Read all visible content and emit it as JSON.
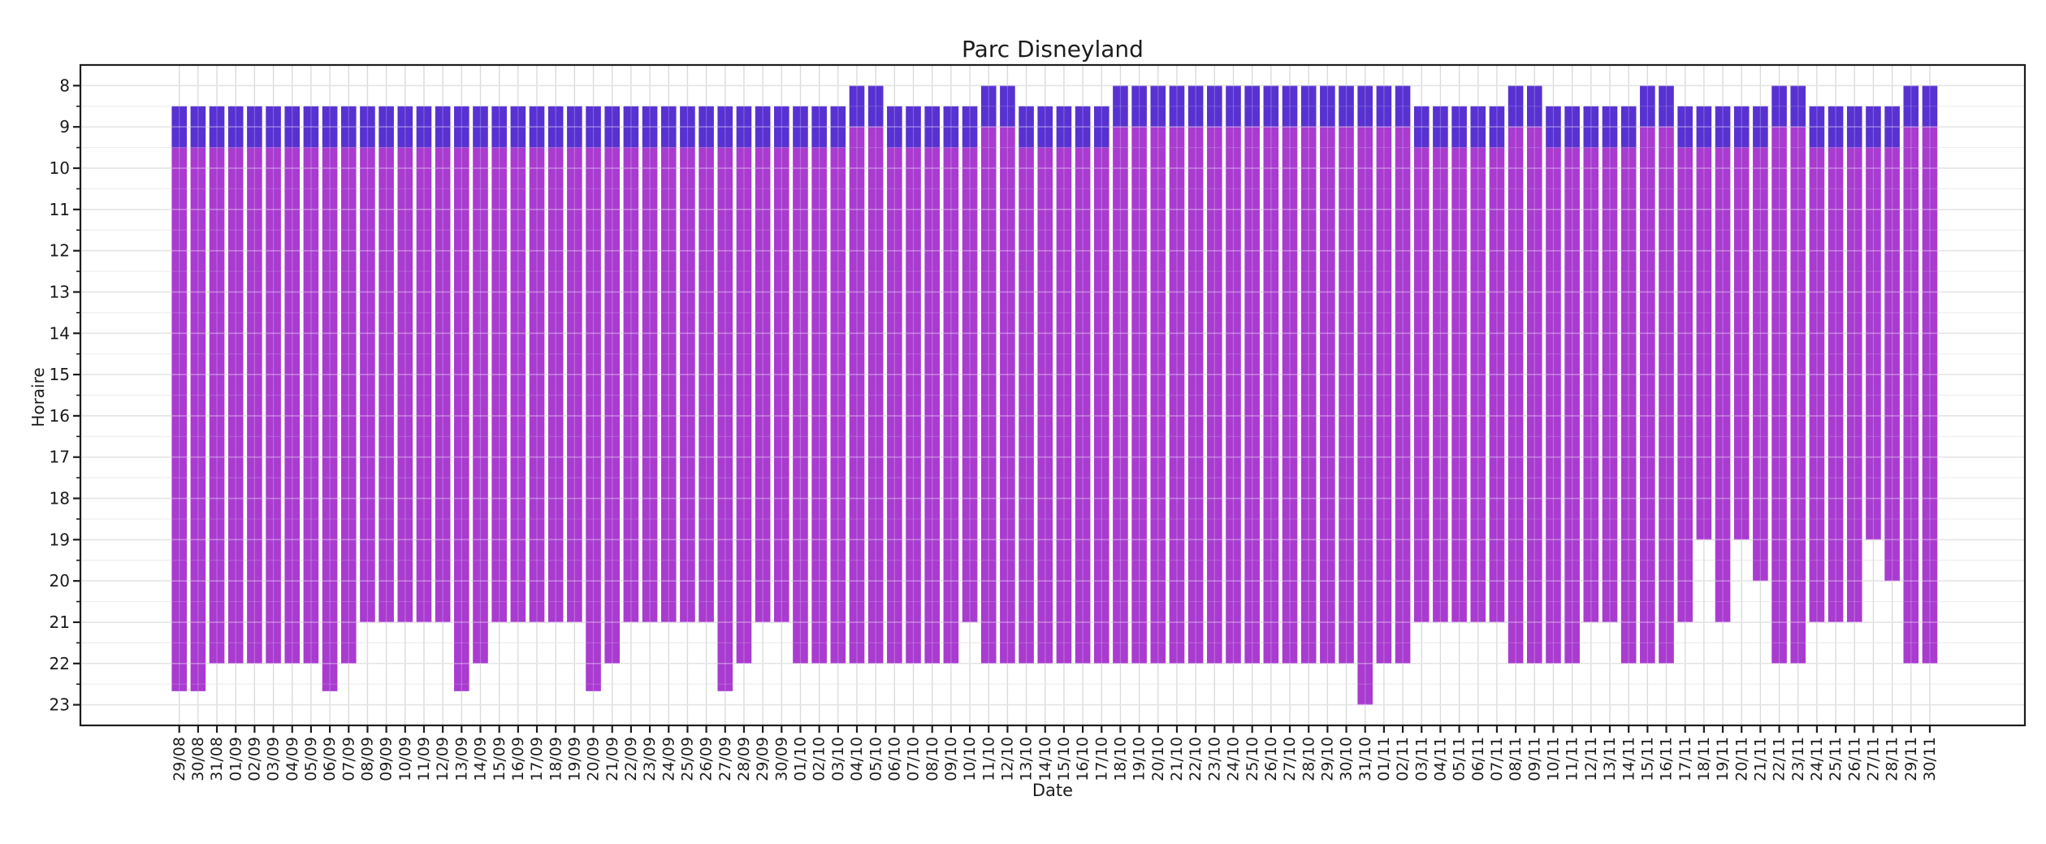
{
  "chart_data": {
    "type": "bar",
    "title": "Parc Disneyland",
    "xlabel": "Date",
    "ylabel": "Horaire",
    "y_ticks": [
      8,
      9,
      10,
      11,
      12,
      13,
      14,
      15,
      16,
      17,
      18,
      19,
      20,
      21,
      22,
      23
    ],
    "ylim": [
      23.5,
      7.5
    ],
    "y_axis_inverted": true,
    "grid": "on",
    "categories": [
      "29/08",
      "30/08",
      "31/08",
      "01/09",
      "02/09",
      "03/09",
      "04/09",
      "05/09",
      "06/09",
      "07/09",
      "08/09",
      "09/09",
      "10/09",
      "11/09",
      "12/09",
      "13/09",
      "14/09",
      "15/09",
      "16/09",
      "17/09",
      "18/09",
      "19/09",
      "20/09",
      "21/09",
      "22/09",
      "23/09",
      "24/09",
      "25/09",
      "26/09",
      "27/09",
      "28/09",
      "29/09",
      "30/09",
      "01/10",
      "02/10",
      "03/10",
      "04/10",
      "05/10",
      "06/10",
      "07/10",
      "08/10",
      "09/10",
      "10/10",
      "11/10",
      "12/10",
      "13/10",
      "14/10",
      "15/10",
      "16/10",
      "17/10",
      "18/10",
      "19/10",
      "20/10",
      "21/10",
      "22/10",
      "23/10",
      "24/10",
      "25/10",
      "26/10",
      "27/10",
      "28/10",
      "29/10",
      "30/10",
      "31/10",
      "01/11",
      "02/11",
      "03/11",
      "04/11",
      "05/11",
      "06/11",
      "07/11",
      "08/11",
      "09/11",
      "10/11",
      "11/11",
      "12/11",
      "13/11",
      "14/11",
      "15/11",
      "16/11",
      "17/11",
      "18/11",
      "19/11",
      "20/11",
      "21/11",
      "22/11",
      "23/11",
      "24/11",
      "25/11",
      "26/11",
      "27/11",
      "28/11",
      "29/11",
      "30/11"
    ],
    "series": [
      {
        "id": "early-morning-band",
        "color": "#5a2ed8",
        "role": "segment from start to mid"
      },
      {
        "id": "day-band",
        "color": "#ae3cd4",
        "role": "segment from mid to end"
      }
    ],
    "bars": [
      {
        "date": "29/08",
        "start": 8.5,
        "mid": 9.5,
        "end": 22.67
      },
      {
        "date": "30/08",
        "start": 8.5,
        "mid": 9.5,
        "end": 22.67
      },
      {
        "date": "31/08",
        "start": 8.5,
        "mid": 9.5,
        "end": 22
      },
      {
        "date": "01/09",
        "start": 8.5,
        "mid": 9.5,
        "end": 22
      },
      {
        "date": "02/09",
        "start": 8.5,
        "mid": 9.5,
        "end": 22
      },
      {
        "date": "03/09",
        "start": 8.5,
        "mid": 9.5,
        "end": 22
      },
      {
        "date": "04/09",
        "start": 8.5,
        "mid": 9.5,
        "end": 22
      },
      {
        "date": "05/09",
        "start": 8.5,
        "mid": 9.5,
        "end": 22
      },
      {
        "date": "06/09",
        "start": 8.5,
        "mid": 9.5,
        "end": 22.67
      },
      {
        "date": "07/09",
        "start": 8.5,
        "mid": 9.5,
        "end": 22
      },
      {
        "date": "08/09",
        "start": 8.5,
        "mid": 9.5,
        "end": 21
      },
      {
        "date": "09/09",
        "start": 8.5,
        "mid": 9.5,
        "end": 21
      },
      {
        "date": "10/09",
        "start": 8.5,
        "mid": 9.5,
        "end": 21
      },
      {
        "date": "11/09",
        "start": 8.5,
        "mid": 9.5,
        "end": 21
      },
      {
        "date": "12/09",
        "start": 8.5,
        "mid": 9.5,
        "end": 21
      },
      {
        "date": "13/09",
        "start": 8.5,
        "mid": 9.5,
        "end": 22.67
      },
      {
        "date": "14/09",
        "start": 8.5,
        "mid": 9.5,
        "end": 22
      },
      {
        "date": "15/09",
        "start": 8.5,
        "mid": 9.5,
        "end": 21
      },
      {
        "date": "16/09",
        "start": 8.5,
        "mid": 9.5,
        "end": 21
      },
      {
        "date": "17/09",
        "start": 8.5,
        "mid": 9.5,
        "end": 21
      },
      {
        "date": "18/09",
        "start": 8.5,
        "mid": 9.5,
        "end": 21
      },
      {
        "date": "19/09",
        "start": 8.5,
        "mid": 9.5,
        "end": 21
      },
      {
        "date": "20/09",
        "start": 8.5,
        "mid": 9.5,
        "end": 22.67
      },
      {
        "date": "21/09",
        "start": 8.5,
        "mid": 9.5,
        "end": 22
      },
      {
        "date": "22/09",
        "start": 8.5,
        "mid": 9.5,
        "end": 21
      },
      {
        "date": "23/09",
        "start": 8.5,
        "mid": 9.5,
        "end": 21
      },
      {
        "date": "24/09",
        "start": 8.5,
        "mid": 9.5,
        "end": 21
      },
      {
        "date": "25/09",
        "start": 8.5,
        "mid": 9.5,
        "end": 21
      },
      {
        "date": "26/09",
        "start": 8.5,
        "mid": 9.5,
        "end": 21
      },
      {
        "date": "27/09",
        "start": 8.5,
        "mid": 9.5,
        "end": 22.67
      },
      {
        "date": "28/09",
        "start": 8.5,
        "mid": 9.5,
        "end": 22
      },
      {
        "date": "29/09",
        "start": 8.5,
        "mid": 9.5,
        "end": 21
      },
      {
        "date": "30/09",
        "start": 8.5,
        "mid": 9.5,
        "end": 21
      },
      {
        "date": "01/10",
        "start": 8.5,
        "mid": 9.5,
        "end": 22
      },
      {
        "date": "02/10",
        "start": 8.5,
        "mid": 9.5,
        "end": 22
      },
      {
        "date": "03/10",
        "start": 8.5,
        "mid": 9.5,
        "end": 22
      },
      {
        "date": "04/10",
        "start": 8.0,
        "mid": 9.0,
        "end": 22
      },
      {
        "date": "05/10",
        "start": 8.0,
        "mid": 9.0,
        "end": 22
      },
      {
        "date": "06/10",
        "start": 8.5,
        "mid": 9.5,
        "end": 22
      },
      {
        "date": "07/10",
        "start": 8.5,
        "mid": 9.5,
        "end": 22
      },
      {
        "date": "08/10",
        "start": 8.5,
        "mid": 9.5,
        "end": 22
      },
      {
        "date": "09/10",
        "start": 8.5,
        "mid": 9.5,
        "end": 22
      },
      {
        "date": "10/10",
        "start": 8.5,
        "mid": 9.5,
        "end": 21
      },
      {
        "date": "11/10",
        "start": 8.0,
        "mid": 9.0,
        "end": 22
      },
      {
        "date": "12/10",
        "start": 8.0,
        "mid": 9.0,
        "end": 22
      },
      {
        "date": "13/10",
        "start": 8.5,
        "mid": 9.5,
        "end": 22
      },
      {
        "date": "14/10",
        "start": 8.5,
        "mid": 9.5,
        "end": 22
      },
      {
        "date": "15/10",
        "start": 8.5,
        "mid": 9.5,
        "end": 22
      },
      {
        "date": "16/10",
        "start": 8.5,
        "mid": 9.5,
        "end": 22
      },
      {
        "date": "17/10",
        "start": 8.5,
        "mid": 9.5,
        "end": 22
      },
      {
        "date": "18/10",
        "start": 8.0,
        "mid": 9.0,
        "end": 22
      },
      {
        "date": "19/10",
        "start": 8.0,
        "mid": 9.0,
        "end": 22
      },
      {
        "date": "20/10",
        "start": 8.0,
        "mid": 9.0,
        "end": 22
      },
      {
        "date": "21/10",
        "start": 8.0,
        "mid": 9.0,
        "end": 22
      },
      {
        "date": "22/10",
        "start": 8.0,
        "mid": 9.0,
        "end": 22
      },
      {
        "date": "23/10",
        "start": 8.0,
        "mid": 9.0,
        "end": 22
      },
      {
        "date": "24/10",
        "start": 8.0,
        "mid": 9.0,
        "end": 22
      },
      {
        "date": "25/10",
        "start": 8.0,
        "mid": 9.0,
        "end": 22
      },
      {
        "date": "26/10",
        "start": 8.0,
        "mid": 9.0,
        "end": 22
      },
      {
        "date": "27/10",
        "start": 8.0,
        "mid": 9.0,
        "end": 22
      },
      {
        "date": "28/10",
        "start": 8.0,
        "mid": 9.0,
        "end": 22
      },
      {
        "date": "29/10",
        "start": 8.0,
        "mid": 9.0,
        "end": 22
      },
      {
        "date": "30/10",
        "start": 8.0,
        "mid": 9.0,
        "end": 22
      },
      {
        "date": "31/10",
        "start": 8.0,
        "mid": 9.0,
        "end": 23
      },
      {
        "date": "01/11",
        "start": 8.0,
        "mid": 9.0,
        "end": 22
      },
      {
        "date": "02/11",
        "start": 8.0,
        "mid": 9.0,
        "end": 22
      },
      {
        "date": "03/11",
        "start": 8.5,
        "mid": 9.5,
        "end": 21
      },
      {
        "date": "04/11",
        "start": 8.5,
        "mid": 9.5,
        "end": 21
      },
      {
        "date": "05/11",
        "start": 8.5,
        "mid": 9.5,
        "end": 21
      },
      {
        "date": "06/11",
        "start": 8.5,
        "mid": 9.5,
        "end": 21
      },
      {
        "date": "07/11",
        "start": 8.5,
        "mid": 9.5,
        "end": 21
      },
      {
        "date": "08/11",
        "start": 8.0,
        "mid": 9.0,
        "end": 22
      },
      {
        "date": "09/11",
        "start": 8.0,
        "mid": 9.0,
        "end": 22
      },
      {
        "date": "10/11",
        "start": 8.5,
        "mid": 9.5,
        "end": 22
      },
      {
        "date": "11/11",
        "start": 8.5,
        "mid": 9.5,
        "end": 22
      },
      {
        "date": "12/11",
        "start": 8.5,
        "mid": 9.5,
        "end": 21
      },
      {
        "date": "13/11",
        "start": 8.5,
        "mid": 9.5,
        "end": 21
      },
      {
        "date": "14/11",
        "start": 8.5,
        "mid": 9.5,
        "end": 22
      },
      {
        "date": "15/11",
        "start": 8.0,
        "mid": 9.0,
        "end": 22
      },
      {
        "date": "16/11",
        "start": 8.0,
        "mid": 9.0,
        "end": 22
      },
      {
        "date": "17/11",
        "start": 8.5,
        "mid": 9.5,
        "end": 21
      },
      {
        "date": "18/11",
        "start": 8.5,
        "mid": 9.5,
        "end": 19
      },
      {
        "date": "19/11",
        "start": 8.5,
        "mid": 9.5,
        "end": 21
      },
      {
        "date": "20/11",
        "start": 8.5,
        "mid": 9.5,
        "end": 19
      },
      {
        "date": "21/11",
        "start": 8.5,
        "mid": 9.5,
        "end": 20
      },
      {
        "date": "22/11",
        "start": 8.0,
        "mid": 9.0,
        "end": 22
      },
      {
        "date": "23/11",
        "start": 8.0,
        "mid": 9.0,
        "end": 22
      },
      {
        "date": "24/11",
        "start": 8.5,
        "mid": 9.5,
        "end": 21
      },
      {
        "date": "25/11",
        "start": 8.5,
        "mid": 9.5,
        "end": 21
      },
      {
        "date": "26/11",
        "start": 8.5,
        "mid": 9.5,
        "end": 21
      },
      {
        "date": "27/11",
        "start": 8.5,
        "mid": 9.5,
        "end": 19
      },
      {
        "date": "28/11",
        "start": 8.5,
        "mid": 9.5,
        "end": 20
      },
      {
        "date": "29/11",
        "start": 8.0,
        "mid": 9.0,
        "end": 22
      },
      {
        "date": "30/11",
        "start": 8.0,
        "mid": 9.0,
        "end": 22
      }
    ]
  },
  "colors": {
    "early_band": "#5731d1",
    "day_band": "#a93bd0",
    "grid_major": "#d6d6d6",
    "grid_minor": "#ebebeb",
    "grid_vertical": "#d0d0d0",
    "spine": "#1d1d1d",
    "text": "#1c1c1c",
    "background": "#ffffff"
  }
}
